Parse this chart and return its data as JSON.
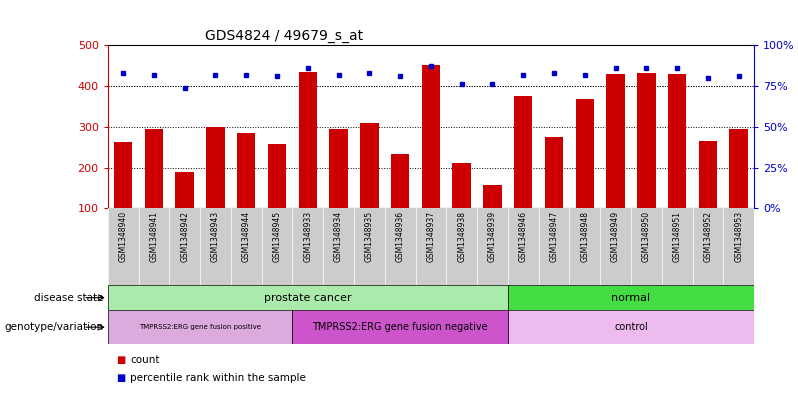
{
  "title": "GDS4824 / 49679_s_at",
  "samples": [
    "GSM1348940",
    "GSM1348941",
    "GSM1348942",
    "GSM1348943",
    "GSM1348944",
    "GSM1348945",
    "GSM1348933",
    "GSM1348934",
    "GSM1348935",
    "GSM1348936",
    "GSM1348937",
    "GSM1348938",
    "GSM1348939",
    "GSM1348946",
    "GSM1348947",
    "GSM1348948",
    "GSM1348949",
    "GSM1348950",
    "GSM1348951",
    "GSM1348952",
    "GSM1348953"
  ],
  "counts": [
    263,
    295,
    188,
    300,
    285,
    258,
    435,
    295,
    310,
    232,
    452,
    210,
    158,
    375,
    275,
    367,
    430,
    432,
    430,
    265,
    295
  ],
  "percentiles": [
    83,
    82,
    74,
    82,
    82,
    81,
    86,
    82,
    83,
    81,
    87,
    76,
    76,
    82,
    83,
    82,
    86,
    86,
    86,
    80,
    81
  ],
  "bar_color": "#cc0000",
  "dot_color": "#0000cc",
  "ylim_left": [
    100,
    500
  ],
  "ylim_right": [
    0,
    100
  ],
  "yticks_left": [
    100,
    200,
    300,
    400,
    500
  ],
  "yticks_right": [
    0,
    25,
    50,
    75,
    100
  ],
  "grid_values": [
    200,
    300,
    400
  ],
  "disease_state_groups": [
    {
      "label": "prostate cancer",
      "start": 0,
      "end": 13,
      "color": "#aaeaaa"
    },
    {
      "label": "normal",
      "start": 13,
      "end": 21,
      "color": "#44dd44"
    }
  ],
  "genotype_groups": [
    {
      "label": "TMPRSS2:ERG gene fusion positive",
      "start": 0,
      "end": 6,
      "color": "#ddaadd"
    },
    {
      "label": "TMPRSS2:ERG gene fusion negative",
      "start": 6,
      "end": 13,
      "color": "#cc55cc"
    },
    {
      "label": "control",
      "start": 13,
      "end": 21,
      "color": "#eebbee"
    }
  ],
  "bar_color_hex": "#cc0000",
  "dot_color_hex": "#0000cc",
  "left_axis_color": "#cc0000",
  "right_axis_color": "#0000cc",
  "tick_label_bg": "#cccccc",
  "plot_bg_color": "#ffffff"
}
